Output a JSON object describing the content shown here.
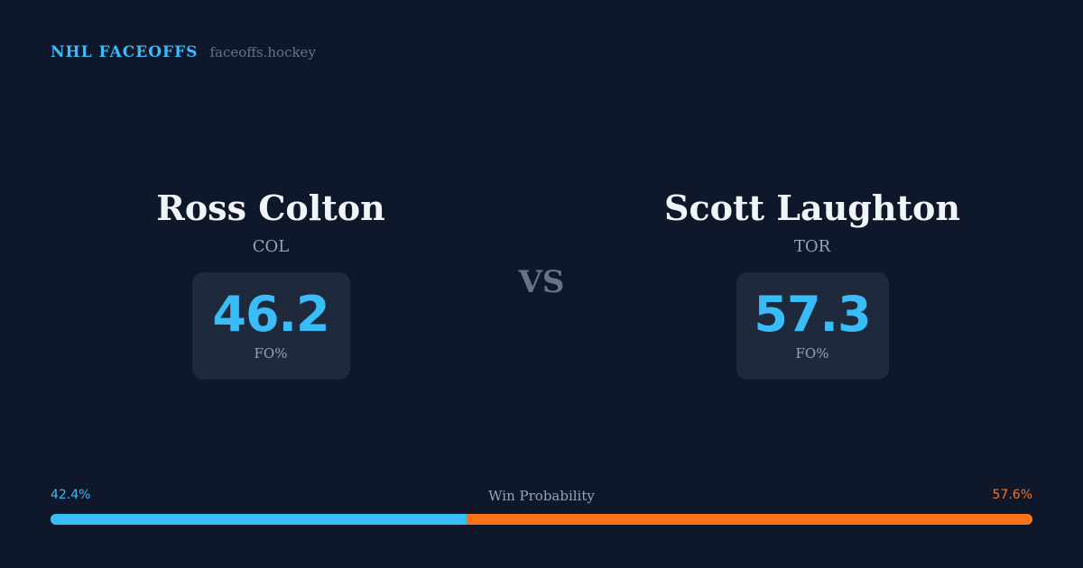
{
  "brand": {
    "name": "NHL FACEOFFS",
    "domain": "faceoffs.hockey"
  },
  "players": {
    "left": {
      "name": "Ross Colton",
      "team": "COL",
      "stat_value": "46.2",
      "stat_label": "FO%"
    },
    "right": {
      "name": "Scott Laughton",
      "team": "TOR",
      "stat_value": "57.3",
      "stat_label": "FO%"
    }
  },
  "vs_label": "VS",
  "win_probability": {
    "title": "Win Probability",
    "left_label": "42.4%",
    "right_label": "57.6%",
    "left_value": 42.4,
    "right_value": 57.6,
    "left_color": "#38bdf8",
    "right_color": "#f97316"
  },
  "colors": {
    "background": "#0f172a",
    "accent": "#38bdf8",
    "card": "#1e293b"
  }
}
